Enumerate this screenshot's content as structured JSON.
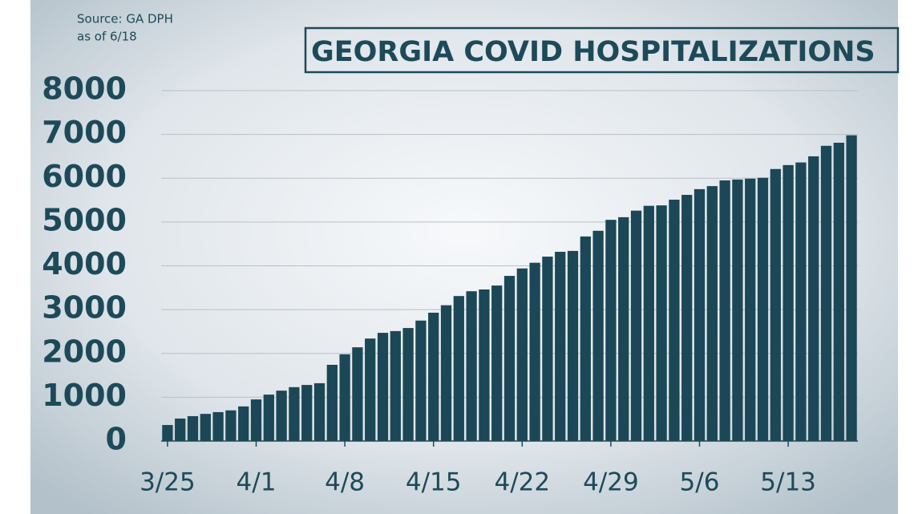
{
  "chart_data": {
    "type": "bar",
    "title": "GEORGIA COVID HOSPITALIZATIONS",
    "source": [
      "Source: GA DPH",
      "as of 6/18"
    ],
    "categories": [
      "3/25",
      null,
      null,
      null,
      null,
      null,
      null,
      "4/1",
      null,
      null,
      null,
      null,
      null,
      null,
      "4/8",
      null,
      null,
      null,
      null,
      null,
      null,
      "4/15",
      null,
      null,
      null,
      null,
      null,
      null,
      "4/22",
      null,
      null,
      null,
      null,
      null,
      null,
      "4/29",
      null,
      null,
      null,
      null,
      null,
      null,
      "5/6",
      null,
      null,
      null,
      null,
      null,
      null,
      "5/13",
      null,
      null,
      null,
      null,
      null
    ],
    "values": [
      366,
      513,
      568,
      620,
      660,
      700,
      790,
      950,
      1060,
      1150,
      1230,
      1280,
      1320,
      1740,
      1980,
      2140,
      2340,
      2470,
      2510,
      2580,
      2750,
      2930,
      3100,
      3310,
      3420,
      3460,
      3550,
      3770,
      3940,
      4070,
      4210,
      4320,
      4340,
      4670,
      4800,
      5050,
      5110,
      5260,
      5370,
      5380,
      5510,
      5620,
      5750,
      5820,
      5950,
      5970,
      5990,
      6010,
      6210,
      6300,
      6360,
      6500,
      6740,
      6810,
      6980
    ],
    "color": "#1c4756",
    "ylim": [
      0,
      8000
    ],
    "yticks": [
      0,
      1000,
      2000,
      3000,
      4000,
      5000,
      6000,
      7000,
      8000
    ],
    "grid": true
  }
}
